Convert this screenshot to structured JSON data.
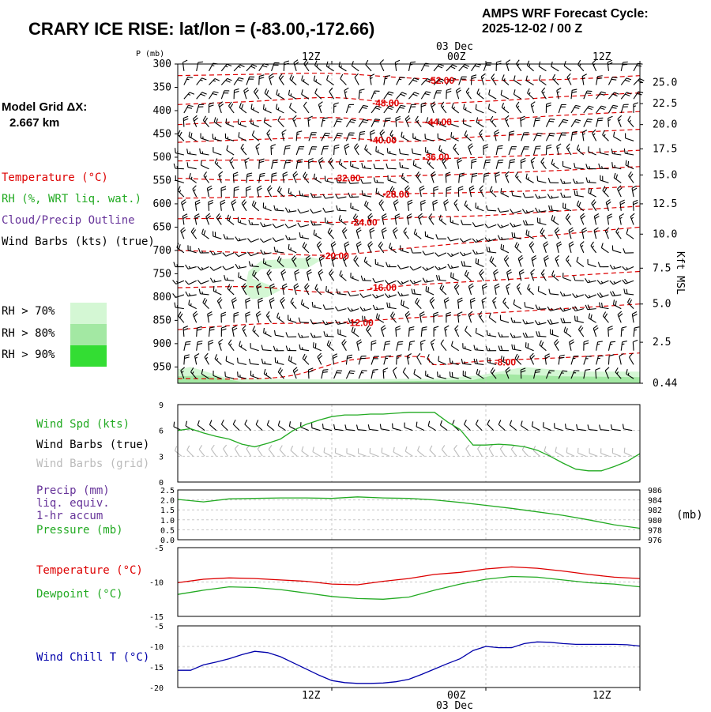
{
  "header": {
    "title": "CRARY ICE RISE:  lat/lon = (-83.00,-172.66)",
    "cycle_line1": "AMPS WRF Forecast Cycle:",
    "cycle_line2": "2025-12-02 / 00  Z"
  },
  "model_grid": {
    "label": "Model Grid ΔX:",
    "value": "2.667 km"
  },
  "colors": {
    "temperature": "#dd0000",
    "rh": "#22aa22",
    "cloud": "#663399",
    "wind": "#000000",
    "grid_wind": "#bbbbbb",
    "wind_chill": "#0000aa",
    "rh70": "#d4f7d4",
    "rh80": "#a3e8a3",
    "rh90": "#33dd33"
  },
  "legend": {
    "temperature": "Temperature (°C)",
    "rh": "RH (%, WRT liq. wat.)",
    "cloud": "Cloud/Precip Outline",
    "barbs": "Wind Barbs (kts) (true)",
    "rh70": "RH > 70%",
    "rh80": "RH > 80%",
    "rh90": "RH > 90%"
  },
  "chart_data": [
    {
      "type": "heatmap",
      "name": "pressure-time cross section",
      "ylabel": "P (mb)",
      "y2label": "Kft MSL",
      "time_labels": [
        "12Z",
        "00Z",
        "12Z"
      ],
      "date_label": "03 Dec",
      "x": [
        0,
        36
      ],
      "x_ticks": [
        12,
        24,
        36
      ],
      "ylim": [
        300,
        985
      ],
      "pressure_ticks": [
        300,
        350,
        400,
        450,
        500,
        550,
        600,
        650,
        700,
        750,
        800,
        850,
        900,
        950
      ],
      "height_ticks": [
        {
          "p": 340,
          "label": "25.0"
        },
        {
          "p": 385,
          "label": "22.5"
        },
        {
          "p": 430,
          "label": "20.0"
        },
        {
          "p": 482,
          "label": "17.5"
        },
        {
          "p": 538,
          "label": "15.0"
        },
        {
          "p": 600,
          "label": "12.5"
        },
        {
          "p": 665,
          "label": "10.0"
        },
        {
          "p": 738,
          "label": "7.5"
        },
        {
          "p": 815,
          "label": "5.0"
        },
        {
          "p": 897,
          "label": "2.5"
        },
        {
          "p": 985,
          "label": "0.44"
        }
      ],
      "isotherms": [
        {
          "label": "-52.00",
          "lx": 20.5,
          "lp": 336,
          "pts": [
            [
              0,
              325
            ],
            [
              6,
              322
            ],
            [
              12,
              320
            ],
            [
              18,
              330
            ],
            [
              24,
              335
            ],
            [
              30,
              333
            ],
            [
              36,
              325
            ]
          ]
        },
        {
          "label": "-48.00",
          "lx": 16.2,
          "lp": 384,
          "pts": [
            [
              0,
              387
            ],
            [
              6,
              380
            ],
            [
              12,
              372
            ],
            [
              18,
              385
            ],
            [
              24,
              380
            ],
            [
              30,
              370
            ],
            [
              36,
              362
            ]
          ]
        },
        {
          "label": "-44.00",
          "lx": 20.3,
          "lp": 425,
          "pts": [
            [
              0,
              430
            ],
            [
              6,
              422
            ],
            [
              12,
              415
            ],
            [
              18,
              425
            ],
            [
              24,
              420
            ],
            [
              30,
              410
            ],
            [
              36,
              402
            ]
          ]
        },
        {
          "label": "-40.00",
          "lx": 16.0,
          "lp": 464,
          "pts": [
            [
              0,
              468
            ],
            [
              6,
              462
            ],
            [
              12,
              458
            ],
            [
              18,
              466
            ],
            [
              24,
              455
            ],
            [
              30,
              448
            ],
            [
              36,
              440
            ]
          ]
        },
        {
          "label": "-36.00",
          "lx": 20.1,
          "lp": 500,
          "pts": [
            [
              0,
              508
            ],
            [
              6,
              506
            ],
            [
              12,
              510
            ],
            [
              18,
              505
            ],
            [
              24,
              500
            ],
            [
              30,
              493
            ],
            [
              36,
              485
            ]
          ]
        },
        {
          "label": "-32.00",
          "lx": 13.2,
          "lp": 545,
          "pts": [
            [
              0,
              545
            ],
            [
              6,
              550
            ],
            [
              12,
              545
            ],
            [
              18,
              540
            ],
            [
              24,
              535
            ],
            [
              30,
              528
            ],
            [
              36,
              520
            ]
          ]
        },
        {
          "label": "-28.00",
          "lx": 17.0,
          "lp": 580,
          "pts": [
            [
              0,
              588
            ],
            [
              6,
              585
            ],
            [
              12,
              580
            ],
            [
              18,
              578
            ],
            [
              24,
              575
            ],
            [
              30,
              570
            ],
            [
              36,
              562
            ]
          ]
        },
        {
          "label": "-24.00",
          "lx": 14.5,
          "lp": 640,
          "pts": [
            [
              0,
              632
            ],
            [
              6,
              632
            ],
            [
              12,
              640
            ],
            [
              18,
              630
            ],
            [
              24,
              625
            ],
            [
              30,
              615
            ],
            [
              36,
              605
            ]
          ]
        },
        {
          "label": "-20.00",
          "lx": 12.3,
          "lp": 712,
          "pts": [
            [
              0,
              700
            ],
            [
              6,
              705
            ],
            [
              12,
              710
            ],
            [
              18,
              695
            ],
            [
              24,
              680
            ],
            [
              30,
              665
            ],
            [
              36,
              650
            ]
          ]
        },
        {
          "label": "-16.00",
          "lx": 16.0,
          "lp": 780,
          "pts": [
            [
              0,
              780
            ],
            [
              6,
              778
            ],
            [
              12,
              790
            ],
            [
              18,
              775
            ],
            [
              24,
              765
            ],
            [
              30,
              755
            ],
            [
              36,
              745
            ]
          ]
        },
        {
          "label": "-12.00",
          "lx": 14.2,
          "lp": 855,
          "pts": [
            [
              0,
              870
            ],
            [
              6,
              858
            ],
            [
              12,
              855
            ],
            [
              18,
              845
            ],
            [
              24,
              835
            ],
            [
              30,
              825
            ],
            [
              36,
              815
            ]
          ]
        },
        {
          "label": "-8.00",
          "lx": 25.5,
          "lp": 940,
          "pts": [
            [
              0,
              975
            ],
            [
              8,
              972
            ],
            [
              13.5,
              935
            ],
            [
              19,
              928
            ],
            [
              20,
              945
            ],
            [
              24,
              937
            ],
            [
              30,
              930
            ],
            [
              36,
              920
            ]
          ]
        }
      ],
      "rh70_regions": [
        [
          [
            5.8,
            760
          ],
          [
            6.5,
            740
          ],
          [
            8.5,
            738
          ],
          [
            10,
            740
          ],
          [
            11.2,
            720
          ],
          [
            10.5,
            715
          ],
          [
            8.5,
            718
          ],
          [
            6.5,
            722
          ],
          [
            5.5,
            745
          ],
          [
            5.2,
            790
          ],
          [
            5.8,
            805
          ],
          [
            7,
            800
          ],
          [
            8,
            785
          ],
          [
            7.2,
            775
          ]
        ],
        [
          [
            0,
            955
          ],
          [
            0,
            985
          ],
          [
            36,
            985
          ],
          [
            36,
            960
          ],
          [
            31,
            960
          ],
          [
            27,
            950
          ],
          [
            23.5,
            968
          ],
          [
            20,
            975
          ],
          [
            12,
            977
          ],
          [
            4,
            975
          ],
          [
            1,
            950
          ]
        ]
      ],
      "rh80_regions": [
        [
          [
            0,
            970
          ],
          [
            0,
            985
          ],
          [
            36,
            985
          ],
          [
            36,
            972
          ],
          [
            30,
            970
          ],
          [
            25,
            965
          ],
          [
            23,
            978
          ],
          [
            14,
            982
          ],
          [
            5,
            982
          ],
          [
            2,
            968
          ]
        ]
      ],
      "barb_levels": [
        315,
        345,
        375,
        405,
        435,
        465,
        495,
        525,
        555,
        585,
        615,
        645,
        675,
        705,
        735,
        765,
        795,
        825,
        855,
        885,
        915,
        945,
        975
      ]
    },
    {
      "type": "line",
      "name": "wind speed",
      "series_label": "Wind Spd (kts)",
      "barbs_label": "Wind Barbs (true)",
      "grid_barbs_label": "Wind Barbs (grid)",
      "ylim": [
        0,
        9
      ],
      "y_ticks": [
        0,
        3,
        6,
        9
      ],
      "x": [
        0,
        1,
        2,
        3,
        4,
        5,
        6,
        7,
        8,
        9,
        10,
        11,
        12,
        13,
        14,
        15,
        16,
        17,
        18,
        19,
        20,
        21,
        22,
        23,
        24,
        25,
        26,
        27,
        28,
        29,
        30,
        31,
        32,
        33,
        34,
        35,
        36
      ],
      "values": [
        6.0,
        6.2,
        5.7,
        5.3,
        5.0,
        4.4,
        4.1,
        4.5,
        5.0,
        6.0,
        6.7,
        7.2,
        7.6,
        7.8,
        7.8,
        7.9,
        7.9,
        8.0,
        8.1,
        8.1,
        8.1,
        7.0,
        6.1,
        4.3,
        4.3,
        4.4,
        4.3,
        4.1,
        3.7,
        3.0,
        2.2,
        1.5,
        1.3,
        1.3,
        1.8,
        2.4,
        3.3
      ]
    },
    {
      "type": "line",
      "name": "precip and pressure",
      "precip_label": "Precip (mm)",
      "precip_label2": "liq. equiv.",
      "precip_label3": "1-hr accum",
      "pressure_label": "Pressure (mb)",
      "y2label": "(mb)",
      "precip_ylim": [
        0,
        2.5
      ],
      "precip_ticks": [
        "2.5",
        "2.0",
        "1.5",
        "1.0",
        "0.5",
        "0.0"
      ],
      "pressure_ylim": [
        976,
        986
      ],
      "pressure_ticks": [
        "986",
        "984",
        "982",
        "980",
        "978",
        "976"
      ],
      "x": [
        0,
        2,
        4,
        6,
        8,
        10,
        12,
        14,
        16,
        18,
        20,
        22,
        24,
        26,
        28,
        30,
        32,
        34,
        36
      ],
      "pressure": [
        984.1,
        983.6,
        984.2,
        984.3,
        984.4,
        984.4,
        984.3,
        984.6,
        984.4,
        984.3,
        984.0,
        983.5,
        982.9,
        982.3,
        981.6,
        980.9,
        980.0,
        979.0,
        978.3
      ],
      "precip": [
        0,
        0,
        0,
        0,
        0,
        0,
        0,
        0,
        0,
        0,
        0,
        0,
        0,
        0,
        0,
        0,
        0,
        0,
        0
      ]
    },
    {
      "type": "line",
      "name": "temperature and dewpoint",
      "temp_label": "Temperature (°C)",
      "dew_label": "Dewpoint (°C)",
      "ylim": [
        -15,
        -5
      ],
      "y_ticks": [
        "-5",
        "-10",
        "-15"
      ],
      "x": [
        0,
        2,
        4,
        6,
        8,
        10,
        12,
        14,
        16,
        18,
        20,
        22,
        24,
        26,
        28,
        30,
        32,
        34,
        36
      ],
      "temperature": [
        -10.1,
        -9.6,
        -9.4,
        -9.5,
        -9.7,
        -9.9,
        -10.3,
        -10.4,
        -9.9,
        -9.5,
        -8.9,
        -8.6,
        -8.1,
        -7.8,
        -8.0,
        -8.4,
        -8.9,
        -9.3,
        -9.5
      ],
      "dewpoint": [
        -11.8,
        -11.2,
        -10.7,
        -10.8,
        -11.1,
        -11.6,
        -12.1,
        -12.4,
        -12.5,
        -12.2,
        -11.2,
        -10.3,
        -9.6,
        -9.2,
        -9.3,
        -9.7,
        -10.1,
        -10.3,
        -10.7
      ]
    },
    {
      "type": "line",
      "name": "wind chill",
      "series_label": "Wind Chill T (°C)",
      "ylim": [
        -20,
        -5
      ],
      "y_ticks": [
        "-5",
        "-10",
        "-15",
        "-20"
      ],
      "time_labels": [
        "12Z",
        "00Z",
        "12Z"
      ],
      "date_label": "03 Dec",
      "x": [
        0,
        1,
        2,
        3,
        4,
        5,
        6,
        7,
        8,
        9,
        10,
        11,
        12,
        13,
        14,
        15,
        16,
        17,
        18,
        19,
        20,
        21,
        22,
        23,
        24,
        25,
        26,
        27,
        28,
        29,
        30,
        31,
        32,
        33,
        34,
        35,
        36
      ],
      "values": [
        -15.8,
        -15.8,
        -14.5,
        -13.8,
        -13.0,
        -12.0,
        -11.2,
        -11.5,
        -12.5,
        -14.0,
        -15.5,
        -17.0,
        -18.3,
        -18.8,
        -19.0,
        -19.0,
        -18.9,
        -18.6,
        -18.0,
        -16.8,
        -15.5,
        -14.2,
        -13.0,
        -11.0,
        -10.0,
        -10.3,
        -10.3,
        -9.3,
        -8.9,
        -9.0,
        -9.3,
        -9.5,
        -9.5,
        -9.5,
        -9.5,
        -9.6,
        -9.9
      ]
    }
  ]
}
